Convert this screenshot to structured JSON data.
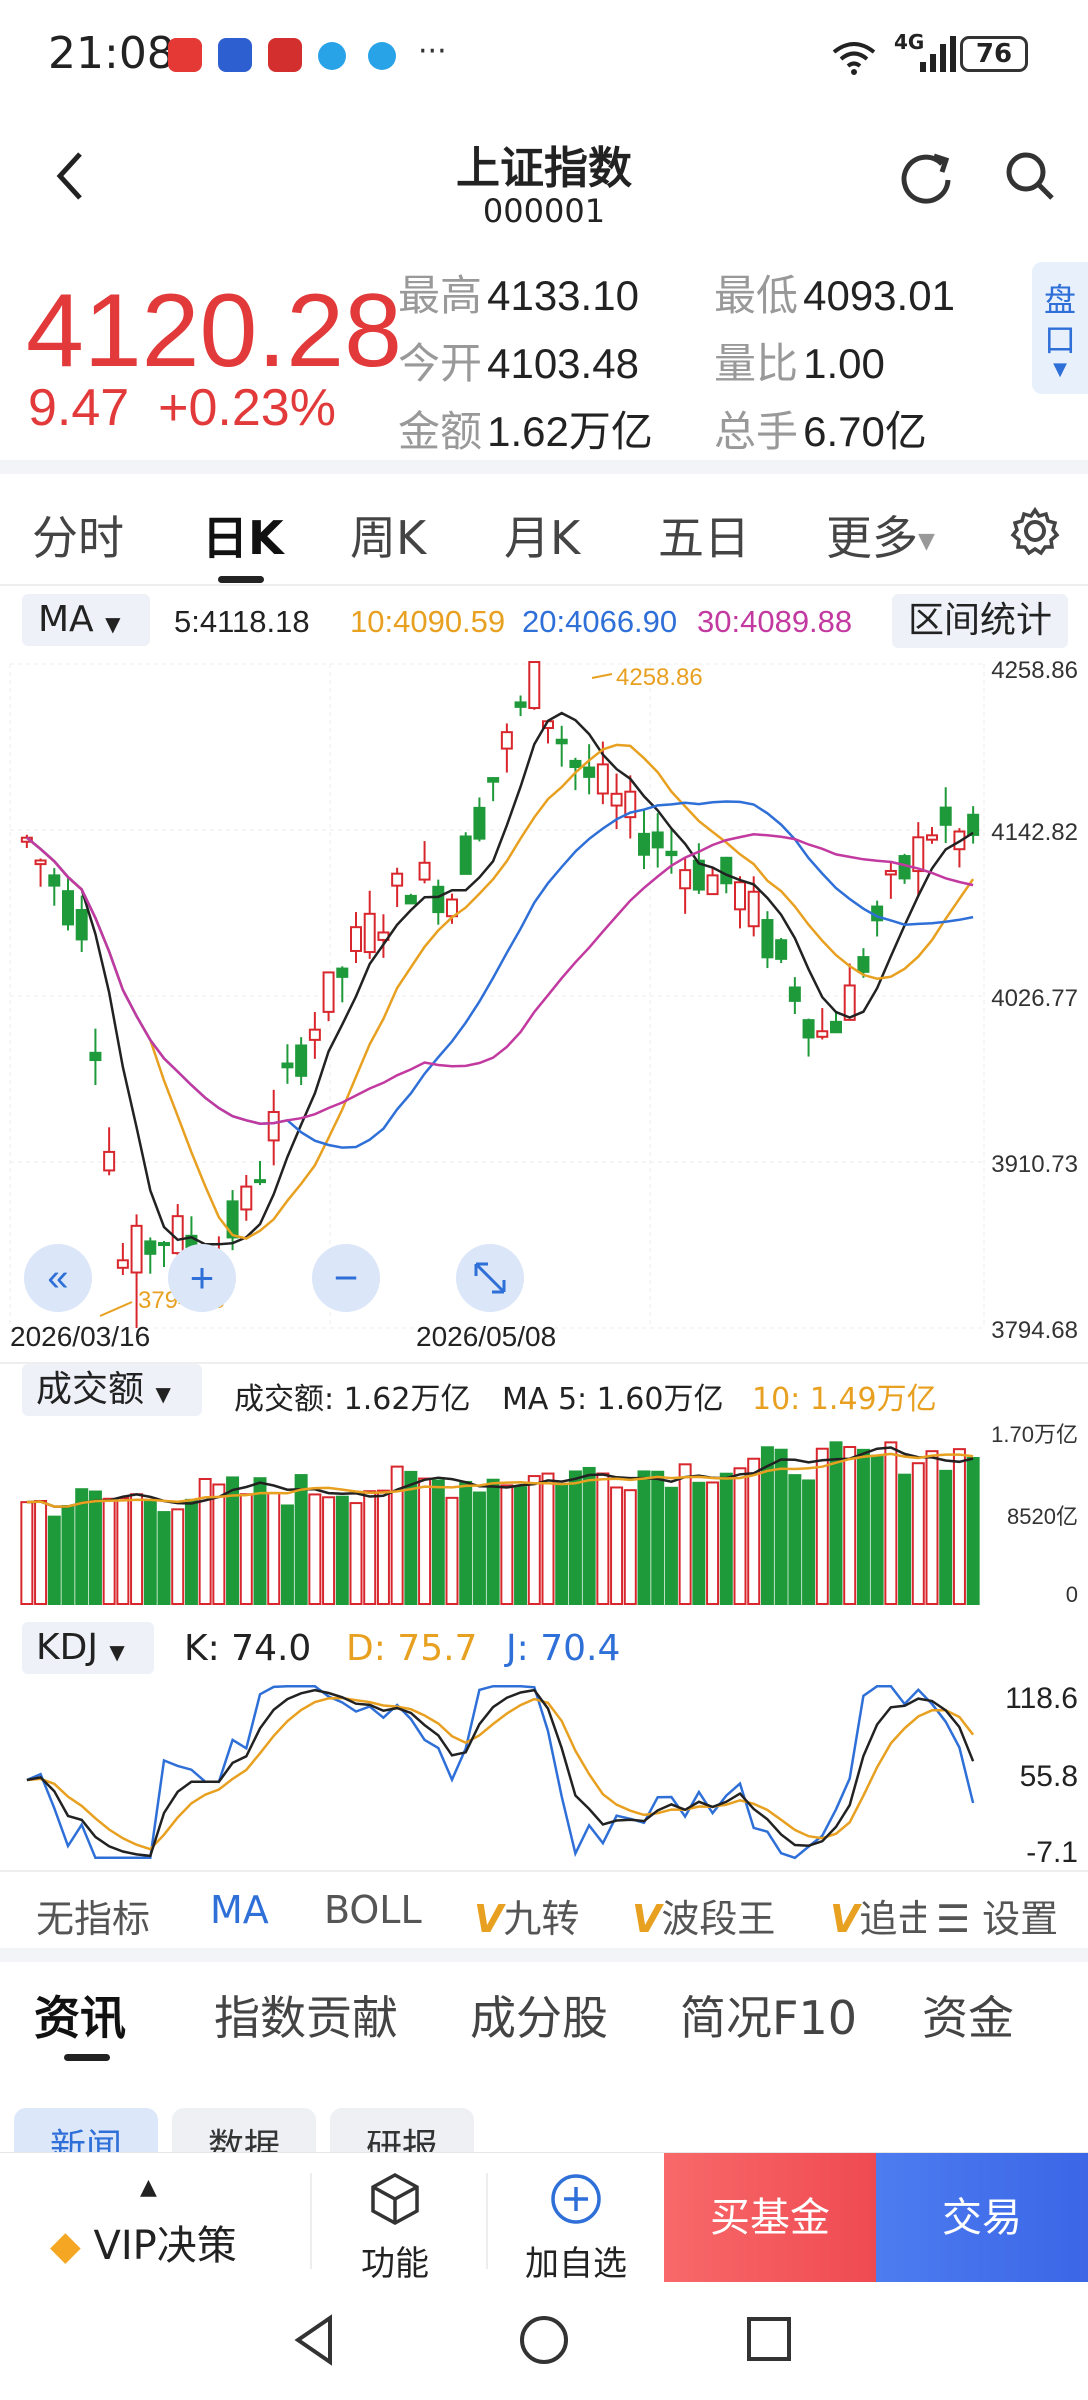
{
  "status": {
    "time": "21:08",
    "network": "4G",
    "battery": "76"
  },
  "header": {
    "title": "上证指数",
    "code": "000001",
    "back_icon": "chevron-left-icon",
    "refresh_icon": "refresh-icon",
    "search_icon": "search-icon"
  },
  "quote": {
    "price": "4120.28",
    "change": "9.47",
    "change_pct": "+0.23%",
    "high_label": "最高",
    "high": "4133.10",
    "low_label": "最低",
    "low": "4093.01",
    "open_label": "今开",
    "open": "4103.48",
    "ratio_label": "量比",
    "ratio": "1.00",
    "amount_label": "金额",
    "amount": "1.62万亿",
    "hands_label": "总手",
    "hands": "6.70亿",
    "pankou": "盘口",
    "up_color": "#e23a3a"
  },
  "tabs": {
    "fenshi": "分时",
    "rik": "日K",
    "zhouk": "周K",
    "yuek": "月K",
    "wuri": "五日",
    "more": "更多"
  },
  "ma_row": {
    "select": "MA",
    "ma5": "5:4118.18",
    "ma10": "10:4090.59",
    "ma20": "20:4066.90",
    "ma30": "30:4089.88",
    "range_btn": "区间统计"
  },
  "kline": {
    "y_ticks": [
      "4258.86",
      "4142.82",
      "4026.77",
      "3910.73",
      "3794.68"
    ],
    "max_label": "4258.86",
    "min_label": "3794.68",
    "date_start": "2026/03/16",
    "date_mid": "2026/05/08",
    "colors": {
      "up": "#d8262d",
      "down": "#1f9a3a",
      "ma5": "#222222",
      "ma10": "#e8a020",
      "ma20": "#2e6fd8",
      "ma30": "#c23aa0"
    }
  },
  "volume": {
    "select": "成交额",
    "amount": "成交额: 1.62万亿",
    "ma5": "MA 5: 1.60万亿",
    "ma10": "10: 1.49万亿",
    "y_ticks": [
      "1.70万亿",
      "8520亿",
      "0"
    ]
  },
  "kdj": {
    "select": "KDJ",
    "k": "K: 74.0",
    "d": "D: 75.7",
    "j": "J: 70.4",
    "y_ticks": [
      "118.6",
      "55.8",
      "-7.1"
    ]
  },
  "tools": {
    "none": "无指标",
    "ma": "MA",
    "boll": "BOLL",
    "jiuzhuan": "九转",
    "boduan": "波段王",
    "zhui": "追击",
    "settings": "设置"
  },
  "news_tabs": {
    "zixun": "资讯",
    "gongxian": "指数贡献",
    "chengfen": "成分股",
    "jiankuang": "简况F10",
    "zijin": "资金"
  },
  "chips": {
    "news": "新闻",
    "data": "数据",
    "research": "研报"
  },
  "bottom": {
    "vip": "VIP决策",
    "func": "功能",
    "add": "加自选",
    "buy": "买基金",
    "trade": "交易"
  }
}
